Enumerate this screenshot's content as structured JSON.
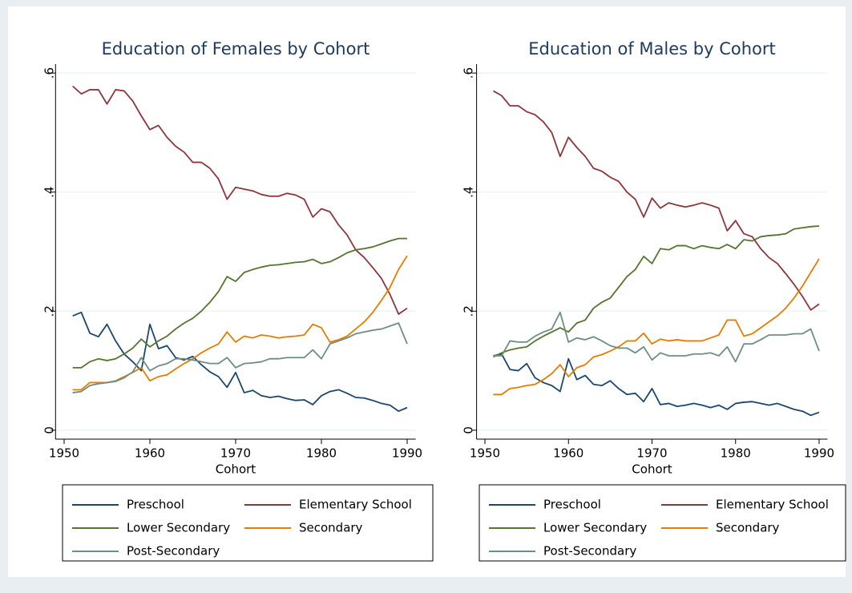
{
  "chart_data": [
    {
      "type": "line",
      "title": "Education of Females by Cohort",
      "x_label": "Cohort",
      "x": [
        1951,
        1952,
        1953,
        1954,
        1955,
        1956,
        1957,
        1958,
        1959,
        1960,
        1961,
        1962,
        1963,
        1964,
        1965,
        1966,
        1967,
        1968,
        1969,
        1970,
        1971,
        1972,
        1973,
        1974,
        1975,
        1976,
        1977,
        1978,
        1979,
        1980,
        1981,
        1982,
        1983,
        1984,
        1985,
        1986,
        1987,
        1988,
        1989,
        1990
      ],
      "xlim": [
        1949,
        1991
      ],
      "xticks": [
        1950,
        1960,
        1970,
        1980,
        1990
      ],
      "ylim": [
        -0.015,
        0.615
      ],
      "yticks": [
        0,
        {
          "value": 0.2,
          "label": ".2"
        },
        {
          "value": 0.4,
          "label": ".4"
        },
        {
          "value": 0.6,
          "label": ".6"
        }
      ],
      "grid": true,
      "series": [
        {
          "name": "Preschool",
          "color": "#1a476f",
          "values": [
            0.192,
            0.198,
            0.163,
            0.157,
            0.178,
            0.15,
            0.128,
            0.115,
            0.1,
            0.178,
            0.137,
            0.142,
            0.122,
            0.118,
            0.124,
            0.11,
            0.098,
            0.09,
            0.072,
            0.097,
            0.063,
            0.067,
            0.058,
            0.055,
            0.057,
            0.053,
            0.05,
            0.051,
            0.043,
            0.058,
            0.065,
            0.068,
            0.062,
            0.055,
            0.054,
            0.05,
            0.045,
            0.042,
            0.032,
            0.038
          ]
        },
        {
          "name": "Elementary School",
          "color": "#90353b",
          "values": [
            0.578,
            0.565,
            0.572,
            0.572,
            0.548,
            0.572,
            0.57,
            0.553,
            0.528,
            0.505,
            0.512,
            0.492,
            0.477,
            0.467,
            0.45,
            0.45,
            0.44,
            0.422,
            0.388,
            0.408,
            0.405,
            0.402,
            0.396,
            0.393,
            0.393,
            0.398,
            0.395,
            0.388,
            0.358,
            0.372,
            0.367,
            0.345,
            0.328,
            0.303,
            0.29,
            0.273,
            0.255,
            0.228,
            0.195,
            0.205
          ]
        },
        {
          "name": "Lower Secondary",
          "color": "#55752f",
          "values": [
            0.105,
            0.105,
            0.115,
            0.12,
            0.117,
            0.12,
            0.128,
            0.138,
            0.153,
            0.14,
            0.15,
            0.158,
            0.17,
            0.18,
            0.188,
            0.2,
            0.215,
            0.233,
            0.258,
            0.25,
            0.265,
            0.27,
            0.274,
            0.277,
            0.278,
            0.28,
            0.282,
            0.283,
            0.287,
            0.28,
            0.283,
            0.29,
            0.298,
            0.303,
            0.305,
            0.308,
            0.313,
            0.318,
            0.322,
            0.322
          ]
        },
        {
          "name": "Secondary",
          "color": "#e37e00",
          "values": [
            0.068,
            0.068,
            0.08,
            0.08,
            0.08,
            0.083,
            0.09,
            0.097,
            0.105,
            0.083,
            0.09,
            0.093,
            0.103,
            0.112,
            0.12,
            0.13,
            0.138,
            0.145,
            0.165,
            0.148,
            0.158,
            0.155,
            0.16,
            0.158,
            0.155,
            0.157,
            0.158,
            0.16,
            0.178,
            0.172,
            0.148,
            0.152,
            0.158,
            0.17,
            0.182,
            0.198,
            0.218,
            0.24,
            0.27,
            0.293
          ]
        },
        {
          "name": "Post-Secondary",
          "color": "#6e8e84",
          "values": [
            0.063,
            0.065,
            0.075,
            0.078,
            0.08,
            0.082,
            0.088,
            0.098,
            0.122,
            0.1,
            0.108,
            0.112,
            0.12,
            0.12,
            0.118,
            0.115,
            0.112,
            0.112,
            0.122,
            0.105,
            0.112,
            0.113,
            0.115,
            0.12,
            0.12,
            0.122,
            0.122,
            0.122,
            0.135,
            0.12,
            0.145,
            0.15,
            0.155,
            0.162,
            0.165,
            0.168,
            0.17,
            0.175,
            0.18,
            0.145
          ]
        }
      ]
    },
    {
      "type": "line",
      "title": "Education of Males by Cohort",
      "x_label": "Cohort",
      "x": [
        1951,
        1952,
        1953,
        1954,
        1955,
        1956,
        1957,
        1958,
        1959,
        1960,
        1961,
        1962,
        1963,
        1964,
        1965,
        1966,
        1967,
        1968,
        1969,
        1970,
        1971,
        1972,
        1973,
        1974,
        1975,
        1976,
        1977,
        1978,
        1979,
        1980,
        1981,
        1982,
        1983,
        1984,
        1985,
        1986,
        1987,
        1988,
        1989,
        1990
      ],
      "xlim": [
        1949,
        1991
      ],
      "xticks": [
        1950,
        1960,
        1970,
        1980,
        1990
      ],
      "ylim": [
        -0.015,
        0.615
      ],
      "yticks": [
        0,
        {
          "value": 0.2,
          "label": ".2"
        },
        {
          "value": 0.4,
          "label": ".4"
        },
        {
          "value": 0.6,
          "label": ".6"
        }
      ],
      "grid": true,
      "series": [
        {
          "name": "Preschool",
          "color": "#1a476f",
          "values": [
            0.125,
            0.128,
            0.102,
            0.1,
            0.112,
            0.088,
            0.08,
            0.075,
            0.065,
            0.12,
            0.085,
            0.092,
            0.077,
            0.075,
            0.083,
            0.07,
            0.06,
            0.062,
            0.048,
            0.07,
            0.043,
            0.045,
            0.04,
            0.042,
            0.045,
            0.042,
            0.038,
            0.042,
            0.035,
            0.045,
            0.047,
            0.048,
            0.045,
            0.042,
            0.045,
            0.04,
            0.035,
            0.032,
            0.025,
            0.03
          ]
        },
        {
          "name": "Elementary School",
          "color": "#90353b",
          "values": [
            0.57,
            0.562,
            0.545,
            0.545,
            0.535,
            0.53,
            0.518,
            0.5,
            0.46,
            0.492,
            0.475,
            0.46,
            0.44,
            0.435,
            0.425,
            0.418,
            0.4,
            0.388,
            0.358,
            0.39,
            0.373,
            0.382,
            0.378,
            0.375,
            0.378,
            0.382,
            0.378,
            0.373,
            0.335,
            0.352,
            0.33,
            0.325,
            0.305,
            0.29,
            0.28,
            0.263,
            0.245,
            0.225,
            0.202,
            0.212
          ]
        },
        {
          "name": "Lower Secondary",
          "color": "#55752f",
          "values": [
            0.123,
            0.13,
            0.135,
            0.138,
            0.14,
            0.15,
            0.158,
            0.165,
            0.172,
            0.165,
            0.18,
            0.185,
            0.205,
            0.215,
            0.222,
            0.24,
            0.258,
            0.27,
            0.292,
            0.28,
            0.305,
            0.303,
            0.31,
            0.31,
            0.305,
            0.31,
            0.307,
            0.305,
            0.312,
            0.305,
            0.32,
            0.318,
            0.325,
            0.327,
            0.328,
            0.33,
            0.338,
            0.34,
            0.342,
            0.343
          ]
        },
        {
          "name": "Secondary",
          "color": "#e37e00",
          "values": [
            0.06,
            0.06,
            0.07,
            0.072,
            0.075,
            0.077,
            0.085,
            0.095,
            0.11,
            0.09,
            0.105,
            0.11,
            0.123,
            0.127,
            0.133,
            0.14,
            0.15,
            0.15,
            0.163,
            0.145,
            0.153,
            0.15,
            0.152,
            0.15,
            0.15,
            0.15,
            0.155,
            0.16,
            0.185,
            0.185,
            0.158,
            0.162,
            0.172,
            0.182,
            0.192,
            0.205,
            0.222,
            0.242,
            0.265,
            0.288
          ]
        },
        {
          "name": "Post-Secondary",
          "color": "#6e8e84",
          "values": [
            0.125,
            0.125,
            0.15,
            0.148,
            0.148,
            0.158,
            0.165,
            0.17,
            0.198,
            0.148,
            0.155,
            0.152,
            0.157,
            0.15,
            0.142,
            0.138,
            0.138,
            0.13,
            0.14,
            0.118,
            0.13,
            0.125,
            0.125,
            0.125,
            0.128,
            0.128,
            0.13,
            0.125,
            0.14,
            0.115,
            0.145,
            0.145,
            0.152,
            0.16,
            0.16,
            0.16,
            0.162,
            0.162,
            0.17,
            0.133
          ]
        }
      ]
    }
  ]
}
